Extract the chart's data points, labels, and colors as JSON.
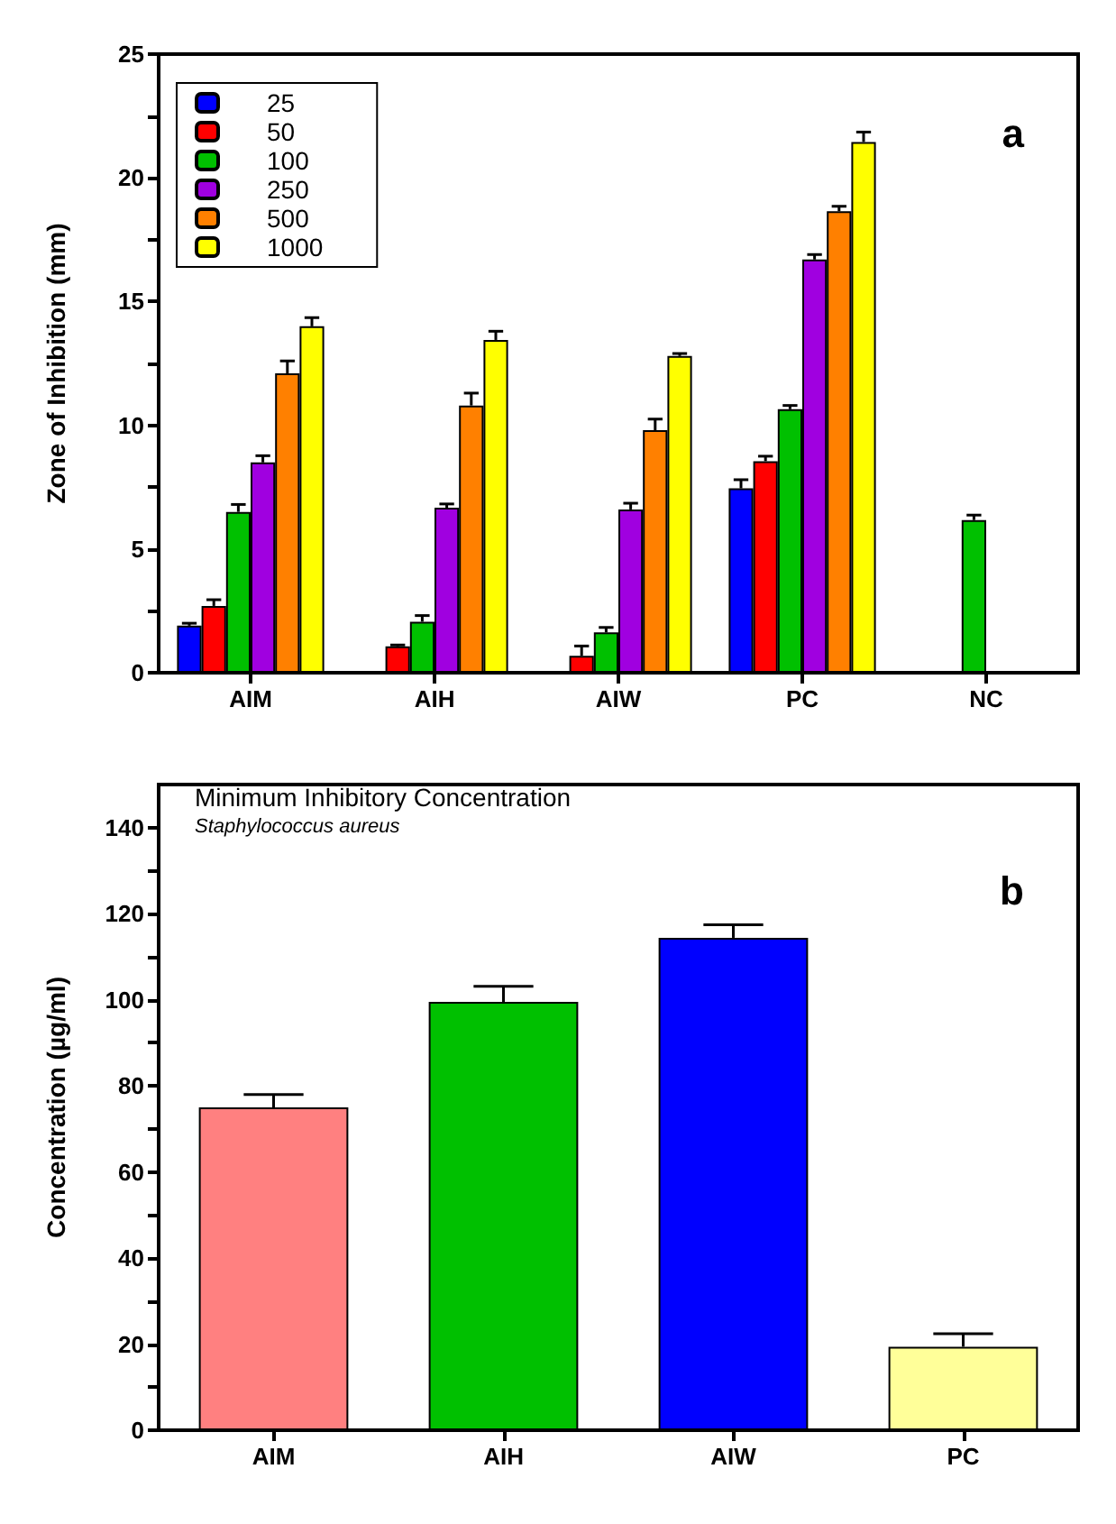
{
  "chart_data": [
    {
      "type": "bar",
      "ylabel": "Zone of Inhibition (mm)",
      "annotations": [
        "a"
      ],
      "categories": [
        "AIM",
        "AIH",
        "AIW",
        "PC",
        "NC"
      ],
      "series": [
        {
          "name": "25",
          "color": "#0000ff",
          "values": [
            1.9,
            null,
            null,
            7.45,
            null
          ],
          "errors": [
            0.1,
            null,
            null,
            0.35,
            null
          ]
        },
        {
          "name": "50",
          "color": "#ff0000",
          "values": [
            2.7,
            1.07,
            0.68,
            8.55,
            null
          ],
          "errors": [
            0.25,
            0.05,
            0.4,
            0.2,
            null
          ]
        },
        {
          "name": "100",
          "color": "#00c000",
          "values": [
            6.5,
            2.06,
            1.63,
            10.65,
            6.17
          ],
          "errors": [
            0.3,
            0.25,
            0.2,
            0.15,
            0.2
          ]
        },
        {
          "name": "250",
          "color": "#a000e0",
          "values": [
            8.5,
            6.67,
            6.6,
            16.7,
            null
          ],
          "errors": [
            0.27,
            0.15,
            0.25,
            0.2,
            null
          ]
        },
        {
          "name": "500",
          "color": "#ff8000",
          "values": [
            12.1,
            10.8,
            9.8,
            18.65,
            null
          ],
          "errors": [
            0.5,
            0.5,
            0.45,
            0.2,
            null
          ]
        },
        {
          "name": "1000",
          "color": "#ffff00",
          "values": [
            14.0,
            13.45,
            12.8,
            21.45,
            null
          ],
          "errors": [
            0.35,
            0.35,
            0.1,
            0.4,
            null
          ]
        }
      ],
      "ylim": [
        0,
        25
      ],
      "yticks": [
        0,
        {
          "value": 2.5,
          "label": null
        },
        5,
        {
          "value": 7.5,
          "label": null
        },
        10,
        {
          "value": 12.5,
          "label": null
        },
        15,
        {
          "value": 17.5,
          "label": null
        },
        20,
        {
          "value": 22.5,
          "label": null
        },
        25
      ],
      "legend": "top left",
      "grid": false
    },
    {
      "type": "bar",
      "title": "Minimum Inhibitory Concentration",
      "subtitle": "Staphylococcus aureus",
      "ylabel": "Concentration (µg/ml)",
      "annotations": [
        "b"
      ],
      "categories": [
        "AIM",
        "AIH",
        "AIW",
        "PC"
      ],
      "values": [
        75,
        99.5,
        114.4,
        19.4
      ],
      "errors": [
        3,
        3.6,
        3,
        3
      ],
      "colors": [
        "#ff8080",
        "#00c000",
        "#0000ff",
        "#ffff99"
      ],
      "ylim": [
        0,
        150
      ],
      "yticks": [
        0,
        {
          "value": 10,
          "label": null
        },
        20,
        {
          "value": 30,
          "label": null
        },
        40,
        {
          "value": 50,
          "label": null
        },
        60,
        {
          "value": 70,
          "label": null
        },
        80,
        {
          "value": 90,
          "label": null
        },
        100,
        {
          "value": 110,
          "label": null
        },
        120,
        {
          "value": 130,
          "label": null
        },
        140
      ],
      "legend": false,
      "grid": false
    }
  ]
}
